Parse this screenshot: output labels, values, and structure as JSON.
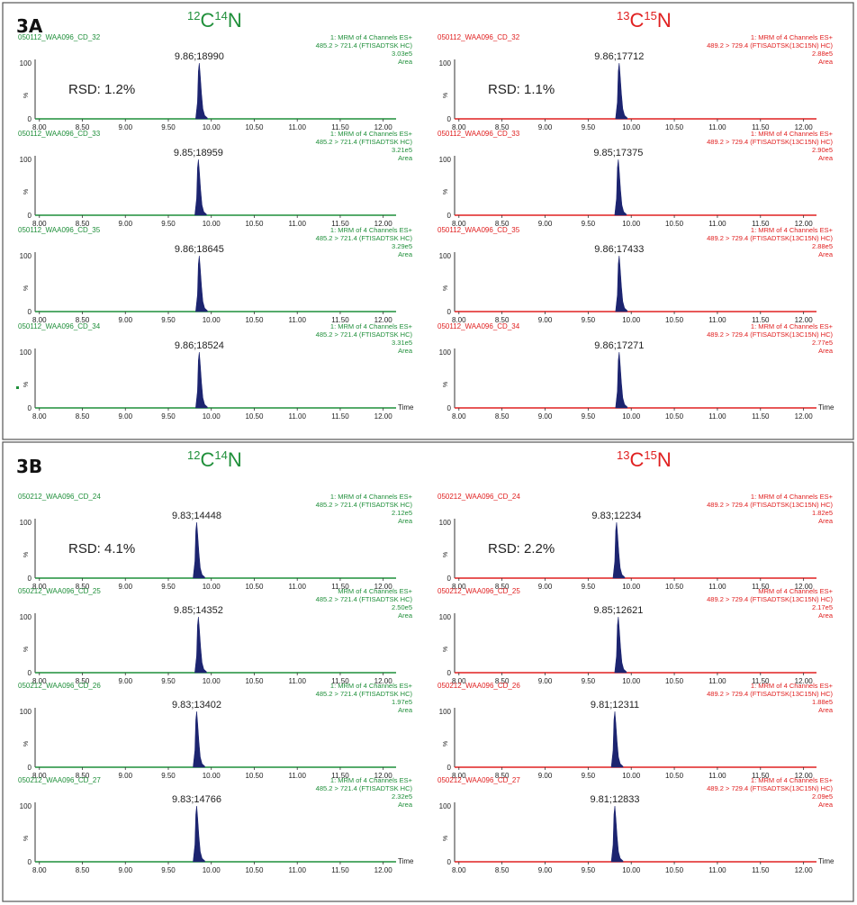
{
  "colors": {
    "light": "#1f8f3a",
    "heavy": "#e02020",
    "peak": "#1c2470",
    "text": "#222222"
  },
  "panels": [
    {
      "id": "3A",
      "label": "3A",
      "headers": [
        {
          "side": "light",
          "mass1": "12",
          "el1": "C",
          "mass2": "14",
          "el2": "N"
        },
        {
          "side": "heavy",
          "mass1": "13",
          "el1": "C",
          "mass2": "15",
          "el2": "N"
        }
      ],
      "columns": [
        {
          "side": "light",
          "rsd": "RSD: 1.2%",
          "transition": "485.2 > 721.4 (FTISADTSK HC)",
          "traces": [
            {
              "sample": "050112_WAA096_CD_32",
              "channel": "1: MRM of 4 Channels ES+",
              "intensity": "3.03e5",
              "mode": "Area",
              "peak_label": "9.86;18990",
              "rt": 9.86
            },
            {
              "sample": "050112_WAA096_CD_33",
              "channel": "1: MRM of 4 Channels ES+",
              "intensity": "3.21e5",
              "mode": "Area",
              "peak_label": "9.85;18959",
              "rt": 9.85
            },
            {
              "sample": "050112_WAA096_CD_35",
              "channel": "1: MRM of 4 Channels ES+",
              "intensity": "3.29e5",
              "mode": "Area",
              "peak_label": "9.86;18645",
              "rt": 9.86
            },
            {
              "sample": "050112_WAA096_CD_34",
              "channel": "1: MRM of 4 Channels ES+",
              "intensity": "3.31e5",
              "mode": "Area",
              "peak_label": "9.86;18524",
              "rt": 9.86
            }
          ]
        },
        {
          "side": "heavy",
          "rsd": "RSD: 1.1%",
          "transition": "489.2 > 729.4 (FTISADTSK(13C15N) HC)",
          "traces": [
            {
              "sample": "050112_WAA096_CD_32",
              "channel": "1: MRM of 4 Channels ES+",
              "intensity": "2.88e5",
              "mode": "Area",
              "peak_label": "9.86;17712",
              "rt": 9.86
            },
            {
              "sample": "050112_WAA096_CD_33",
              "channel": "1: MRM of 4 Channels ES+",
              "intensity": "2.90e5",
              "mode": "Area",
              "peak_label": "9.85;17375",
              "rt": 9.85
            },
            {
              "sample": "050112_WAA096_CD_35",
              "channel": "1: MRM of 4 Channels ES+",
              "intensity": "2.88e5",
              "mode": "Area",
              "peak_label": "9.86;17433",
              "rt": 9.86
            },
            {
              "sample": "050112_WAA096_CD_34",
              "channel": "1: MRM of 4 Channels ES+",
              "intensity": "2.77e5",
              "mode": "Area",
              "peak_label": "9.86;17271",
              "rt": 9.86
            }
          ]
        }
      ]
    },
    {
      "id": "3B",
      "label": "3B",
      "headers": [
        {
          "side": "light",
          "mass1": "12",
          "el1": "C",
          "mass2": "14",
          "el2": "N"
        },
        {
          "side": "heavy",
          "mass1": "13",
          "el1": "C",
          "mass2": "15",
          "el2": "N"
        }
      ],
      "columns": [
        {
          "side": "light",
          "rsd": "RSD: 4.1%",
          "transition": "485.2 > 721.4 (FTISADTSK HC)",
          "traces": [
            {
              "sample": "050212_WAA096_CD_24",
              "channel": "1: MRM of 4 Channels ES+",
              "intensity": "2.12e5",
              "mode": "Area",
              "peak_label": "9.83;14448",
              "rt": 9.83
            },
            {
              "sample": "050212_WAA096_CD_25",
              "channel": "MRM of 4 Channels ES+",
              "intensity": "2.50e5",
              "mode": "Area",
              "peak_label": "9.85;14352",
              "rt": 9.85
            },
            {
              "sample": "050212_WAA096_CD_26",
              "channel": "1: MRM of 4 Channels ES+",
              "intensity": "1.97e5",
              "mode": "Area",
              "peak_label": "9.83;13402",
              "rt": 9.83
            },
            {
              "sample": "050212_WAA096_CD_27",
              "channel": "1: MRM of 4 Channels ES+",
              "intensity": "2.32e5",
              "mode": "Area",
              "peak_label": "9.83;14766",
              "rt": 9.83
            }
          ]
        },
        {
          "side": "heavy",
          "rsd": "RSD: 2.2%",
          "transition": "489.2 > 729.4 (FTISADTSK(13C15N) HC)",
          "traces": [
            {
              "sample": "050212_WAA096_CD_24",
              "channel": "1: MRM of 4 Channels ES+",
              "intensity": "1.82e5",
              "mode": "Area",
              "peak_label": "9.83;12234",
              "rt": 9.83
            },
            {
              "sample": "050212_WAA096_CD_25",
              "channel": "MRM of 4 Channels ES+",
              "intensity": "2.17e5",
              "mode": "Area",
              "peak_label": "9.85;12621",
              "rt": 9.85
            },
            {
              "sample": "050212_WAA096_CD_26",
              "channel": "1: MRM of 4 Channels ES+",
              "intensity": "1.88e5",
              "mode": "Area",
              "peak_label": "9.81;12311",
              "rt": 9.81
            },
            {
              "sample": "050212_WAA096_CD_27",
              "channel": "1: MRM of 4 Channels ES+",
              "intensity": "2.09e5",
              "mode": "Area",
              "peak_label": "9.81;12833",
              "rt": 9.81
            }
          ]
        }
      ]
    }
  ],
  "chart_data": {
    "type": "line",
    "description_label": "MRM chromatograms",
    "xlim": [
      7.95,
      12.15
    ],
    "x_ticks": [
      "8.00",
      "8.50",
      "9.00",
      "9.50",
      "10.00",
      "10.50",
      "11.00",
      "11.50",
      "12.00"
    ],
    "ylim": [
      0,
      100
    ],
    "y_tick_top": "100",
    "y_tick_bottom": "0",
    "ylabel": "%",
    "xlabel": "Time"
  }
}
